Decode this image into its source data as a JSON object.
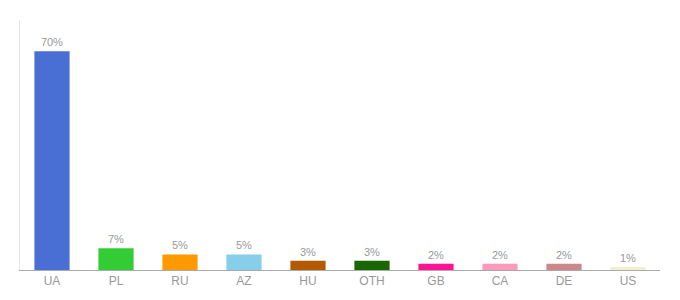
{
  "chart_data": {
    "type": "bar",
    "categories": [
      "UA",
      "PL",
      "RU",
      "AZ",
      "HU",
      "OTH",
      "GB",
      "CA",
      "DE",
      "US"
    ],
    "values": [
      70,
      7,
      5,
      5,
      3,
      3,
      2,
      2,
      2,
      1
    ],
    "value_labels": [
      "70%",
      "7%",
      "5%",
      "5%",
      "3%",
      "3%",
      "2%",
      "2%",
      "2%",
      "1%"
    ],
    "colors": [
      "#4a6fd4",
      "#33cc33",
      "#ff9900",
      "#87ceeb",
      "#b35900",
      "#1a6600",
      "#ff1493",
      "#ff99bb",
      "#cc8888",
      "#f0f0d0"
    ],
    "ylim": [
      0,
      80
    ],
    "grid": false,
    "data_labels": true,
    "tick_labels": "x"
  }
}
